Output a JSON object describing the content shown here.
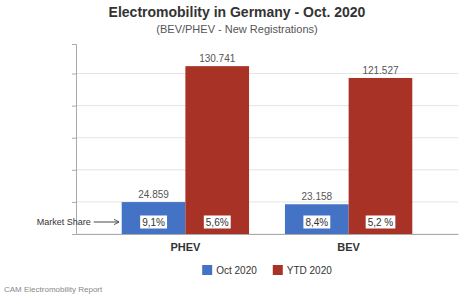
{
  "chart_data": {
    "type": "bar",
    "title": "Electromobility in Germany - Oct. 2020",
    "subtitle": "(BEV/PHEV - New Registrations)",
    "categories": [
      "PHEV",
      "BEV"
    ],
    "series": [
      {
        "name": "Oct 2020",
        "color": "#4472C4",
        "values": [
          24859,
          23158
        ],
        "value_labels": [
          "24.859",
          "23.158"
        ],
        "shares": [
          9.1,
          8.4
        ],
        "share_labels": [
          "9,1%",
          "8,4%"
        ]
      },
      {
        "name": "YTD 2020",
        "color": "#A93226",
        "values": [
          130741,
          121527
        ],
        "value_labels": [
          "130.741",
          "121.527"
        ],
        "shares": [
          5.6,
          5.2
        ],
        "share_labels": [
          "5,6%",
          "5,2 %"
        ]
      }
    ],
    "ylim": [
      0,
      148000
    ],
    "yticks": [
      0,
      25000,
      50000,
      75000,
      100000,
      125000
    ],
    "grid": true,
    "tick_labels": "x",
    "data_labels": true,
    "legend": "bottom",
    "annotation": "Market Share",
    "footnote": "CAM Electromobility Report"
  }
}
